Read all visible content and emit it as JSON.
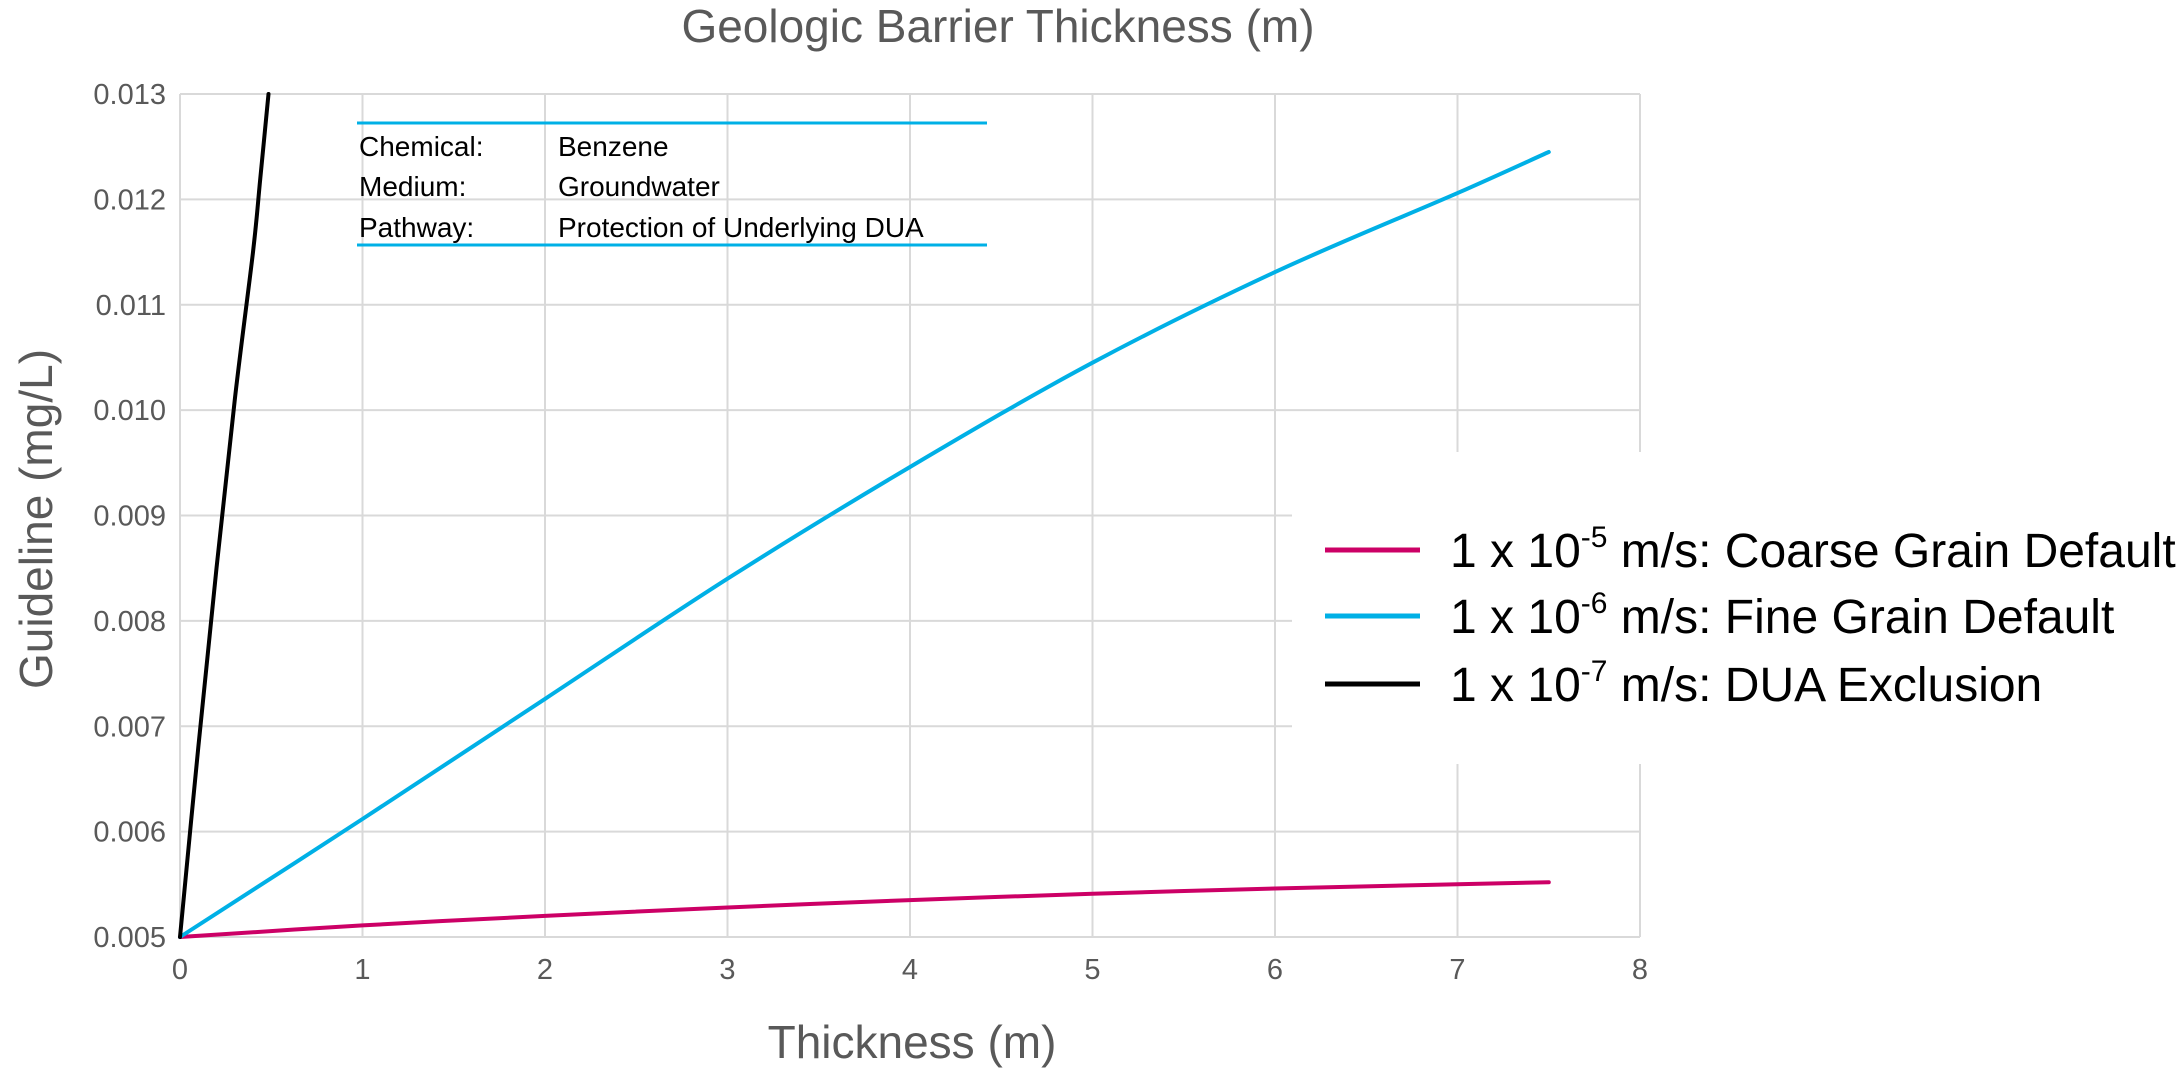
{
  "chart_data": {
    "type": "line",
    "title": "Geologic Barrier Thickness (m)",
    "xlabel": "Thickness (m)",
    "ylabel": "Guideline (mg/L)",
    "xlim": [
      0,
      8
    ],
    "ylim": [
      0.005,
      0.013
    ],
    "x_ticks": [
      0,
      1,
      2,
      3,
      4,
      5,
      6,
      7,
      8
    ],
    "x_tick_labels": [
      "0",
      "1",
      "2",
      "3",
      "4",
      "5",
      "6",
      "7",
      "8"
    ],
    "y_ticks": [
      0.005,
      0.006,
      0.007,
      0.008,
      0.009,
      0.01,
      0.011,
      0.012,
      0.013
    ],
    "y_tick_labels": [
      "0.005",
      "0.006",
      "0.007",
      "0.008",
      "0.009",
      "0.010",
      "0.011",
      "0.012",
      "0.013"
    ],
    "grid": true,
    "legend_position": "right",
    "annotation": {
      "rows": [
        {
          "label": "Chemical:",
          "value": "Benzene"
        },
        {
          "label": "Medium:",
          "value": "Groundwater"
        },
        {
          "label": "Pathway:",
          "value": "Protection of Underlying DUA"
        }
      ],
      "rule_color": "#00b0e6"
    },
    "series": [
      {
        "name": "1 x 10-5 m/s: Coarse Grain Default",
        "legend_parts": {
          "prefix": "1 x 10",
          "exponent": "-5",
          "suffix": " m/s: Coarse Grain Default"
        },
        "color": "#cc0066",
        "x": [
          0,
          1,
          2,
          3,
          4,
          5,
          6,
          7,
          7.5
        ],
        "y": [
          0.005,
          0.00511,
          0.0052,
          0.00528,
          0.00535,
          0.00541,
          0.00546,
          0.0055,
          0.00552
        ]
      },
      {
        "name": "1 x 10-6 m/s: Fine Grain Default",
        "legend_parts": {
          "prefix": "1 x 10",
          "exponent": "-6",
          "suffix": " m/s: Fine Grain Default"
        },
        "color": "#00b0e6",
        "x": [
          0,
          1,
          2,
          3,
          4,
          5,
          6,
          7,
          7.5
        ],
        "y": [
          0.005,
          0.00612,
          0.00726,
          0.0084,
          0.00946,
          0.01045,
          0.01131,
          0.01206,
          0.01245
        ]
      },
      {
        "name": "1 x 10-7 m/s: DUA Exclusion",
        "legend_parts": {
          "prefix": "1 x 10",
          "exponent": "-7",
          "suffix": " m/s: DUA Exclusion"
        },
        "color": "#000000",
        "x": [
          0,
          0.1,
          0.2,
          0.3,
          0.4,
          0.44,
          0.485
        ],
        "y": [
          0.005,
          0.0068,
          0.0085,
          0.0101,
          0.0115,
          0.0122,
          0.013
        ]
      }
    ]
  }
}
